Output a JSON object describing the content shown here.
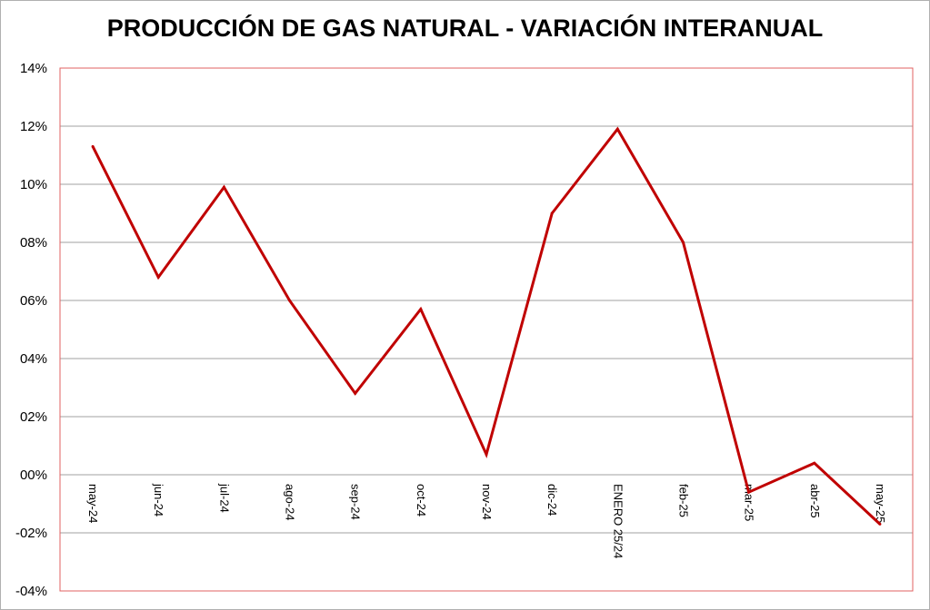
{
  "chart_data": {
    "type": "line",
    "title": "PRODUCCIÓN DE GAS NATURAL - VARIACIÓN INTERANUAL",
    "xlabel": "",
    "ylabel": "",
    "categories": [
      "may-24",
      "jun-24",
      "jul-24",
      "ago-24",
      "sep-24",
      "oct-24",
      "nov-24",
      "dic-24",
      "ENERO 25/24",
      "feb-25",
      "mar-25",
      "abr-25",
      "may-25"
    ],
    "series": [
      {
        "values": [
          0.113,
          0.068,
          0.099,
          0.06,
          0.028,
          0.057,
          0.007,
          0.09,
          0.119,
          0.08,
          -0.006,
          0.004,
          -0.017
        ],
        "color": "#c00000"
      }
    ],
    "ylim": [
      -0.04,
      0.14
    ],
    "yticks": [
      -0.04,
      -0.02,
      0.0,
      0.02,
      0.04,
      0.06,
      0.08,
      0.1,
      0.12,
      0.14
    ],
    "ytick_labels": [
      "-04%",
      "-02%",
      "00%",
      "02%",
      "04%",
      "06%",
      "08%",
      "10%",
      "12%",
      "14%"
    ],
    "grid": true,
    "legend": "none",
    "plot_border_color": "#e06060",
    "gridline_color": "#a0a0a0"
  }
}
